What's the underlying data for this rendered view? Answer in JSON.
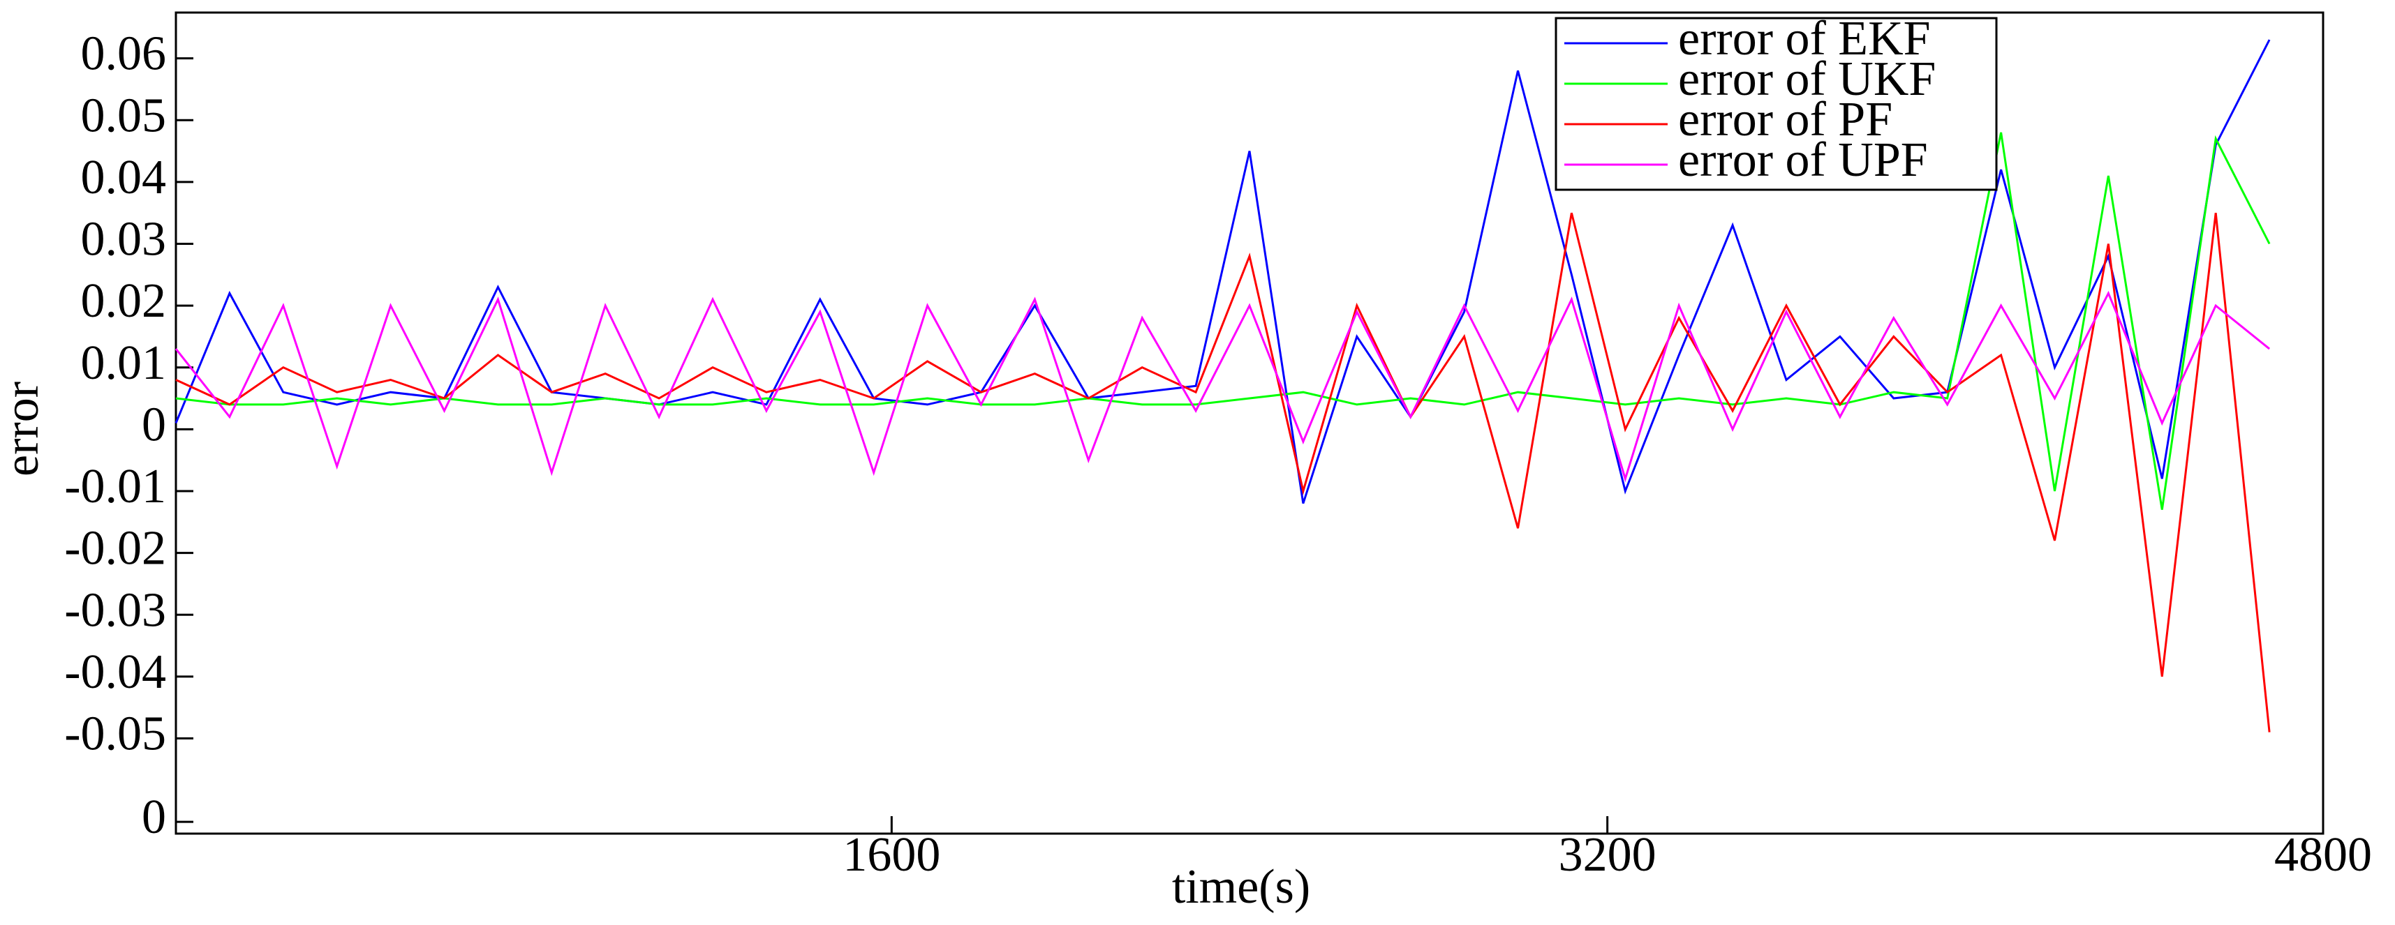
{
  "chart_data": {
    "type": "line",
    "xlabel": "time(s)",
    "ylabel": "error",
    "x": [
      0,
      120,
      240,
      360,
      480,
      600,
      720,
      840,
      960,
      1080,
      1200,
      1320,
      1440,
      1560,
      1680,
      1800,
      1920,
      2040,
      2160,
      2280,
      2400,
      2520,
      2640,
      2760,
      2880,
      3000,
      3120,
      3240,
      3360,
      3480,
      3600,
      3720,
      3840,
      3960,
      4080,
      4200,
      4320,
      4440,
      4560,
      4680
    ],
    "series": [
      {
        "name": "error of EKF",
        "color": "#0000ff",
        "values": [
          0.001,
          0.022,
          0.006,
          0.004,
          0.006,
          0.005,
          0.023,
          0.006,
          0.005,
          0.004,
          0.006,
          0.004,
          0.021,
          0.005,
          0.004,
          0.006,
          0.02,
          0.005,
          0.006,
          0.007,
          0.045,
          -0.012,
          0.015,
          0.002,
          0.019,
          0.058,
          0.025,
          -0.01,
          0.012,
          0.033,
          0.008,
          0.015,
          0.005,
          0.006,
          0.042,
          0.01,
          0.028,
          -0.008,
          0.046,
          0.063
        ]
      },
      {
        "name": "error of UKF",
        "color": "#00ff00",
        "values": [
          0.005,
          0.004,
          0.004,
          0.005,
          0.004,
          0.005,
          0.004,
          0.004,
          0.005,
          0.004,
          0.004,
          0.005,
          0.004,
          0.004,
          0.005,
          0.004,
          0.004,
          0.005,
          0.004,
          0.004,
          0.005,
          0.006,
          0.004,
          0.005,
          0.004,
          0.006,
          0.005,
          0.004,
          0.005,
          0.004,
          0.005,
          0.004,
          0.006,
          0.005,
          0.048,
          -0.01,
          0.041,
          -0.013,
          0.047,
          0.03
        ]
      },
      {
        "name": "error of PF",
        "color": "#ff0000",
        "values": [
          0.008,
          0.004,
          0.01,
          0.006,
          0.008,
          0.005,
          0.012,
          0.006,
          0.009,
          0.005,
          0.01,
          0.006,
          0.008,
          0.005,
          0.011,
          0.006,
          0.009,
          0.005,
          0.01,
          0.006,
          0.028,
          -0.01,
          0.02,
          0.002,
          0.015,
          -0.016,
          0.035,
          0.0,
          0.018,
          0.003,
          0.02,
          0.004,
          0.015,
          0.006,
          0.012,
          -0.018,
          0.03,
          -0.04,
          0.035,
          -0.049
        ]
      },
      {
        "name": "error of UPF",
        "color": "#ff00ff",
        "values": [
          0.013,
          0.002,
          0.02,
          -0.006,
          0.02,
          0.003,
          0.021,
          -0.007,
          0.02,
          0.002,
          0.021,
          0.003,
          0.019,
          -0.007,
          0.02,
          0.004,
          0.021,
          -0.005,
          0.018,
          0.003,
          0.02,
          -0.002,
          0.019,
          0.002,
          0.02,
          0.003,
          0.021,
          -0.008,
          0.02,
          0.0,
          0.019,
          0.002,
          0.018,
          0.004,
          0.02,
          0.005,
          0.022,
          0.001,
          0.02,
          0.013
        ]
      }
    ],
    "xlim": [
      0,
      4800
    ],
    "xticks": [
      1600,
      3200,
      4800
    ],
    "ylim": [
      -0.0654,
      0.0674
    ],
    "yticks": [
      0.06,
      0.05,
      0.04,
      0.03,
      0.02,
      0.01,
      0,
      -0.01,
      -0.02,
      -0.03,
      -0.04,
      -0.05,
      {
        "value": -0.0635,
        "label": "0"
      }
    ],
    "legend": "upper right"
  }
}
